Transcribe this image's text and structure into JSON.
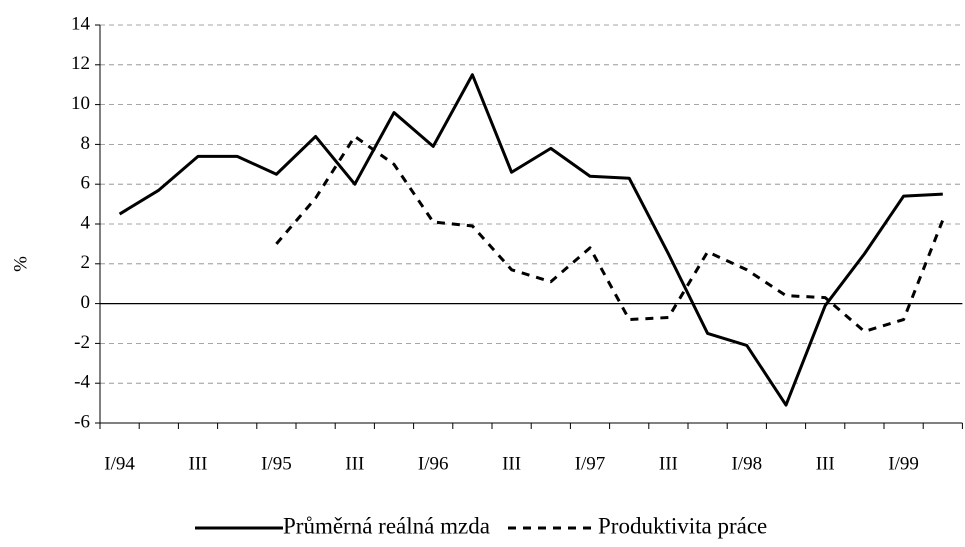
{
  "chart_data": {
    "type": "line",
    "y_label": "%",
    "categories": [
      "I/94",
      null,
      "III",
      null,
      "I/95",
      null,
      "III",
      null,
      "I/96",
      null,
      "III",
      null,
      "I/97",
      null,
      "III",
      null,
      "I/98",
      null,
      "III",
      null,
      "I/99",
      null
    ],
    "series": [
      {
        "name": "Průměrná reálná mzda",
        "color": "#000000",
        "dash": "solid",
        "values": [
          4.5,
          5.7,
          7.4,
          7.4,
          6.5,
          8.4,
          6.0,
          9.6,
          7.9,
          11.5,
          6.6,
          7.8,
          6.4,
          6.3,
          2.5,
          -1.5,
          -2.1,
          -5.1,
          -0.1,
          2.5,
          5.4,
          5.5
        ]
      },
      {
        "name": "Produktivita práce",
        "color": "#000000",
        "dash": "dashed",
        "values": [
          null,
          null,
          null,
          null,
          3.0,
          5.3,
          8.4,
          7.0,
          4.1,
          3.9,
          1.7,
          1.1,
          2.8,
          -0.8,
          -0.7,
          2.6,
          1.7,
          0.4,
          0.3,
          -1.4,
          -0.8,
          4.2
        ]
      }
    ],
    "ylim": [
      -6,
      14
    ],
    "yticks": [
      -6,
      -4,
      -2,
      0,
      2,
      4,
      6,
      8,
      10,
      12,
      14
    ],
    "grid": true
  }
}
